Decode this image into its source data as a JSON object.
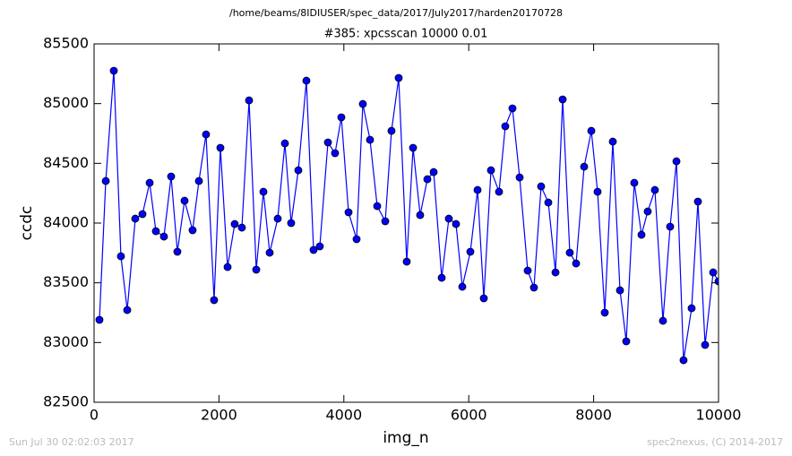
{
  "chart_data": {
    "type": "line",
    "suptitle": "/home/beams/8IDIUSER/spec_data/2017/July2017/harden20170728",
    "title": "#385: xpcsscan 10000 0.01",
    "x_label": "img_n",
    "y_label": "ccdc",
    "footer_left": "Sun Jul 30 02:02:03 2017",
    "footer_right": "spec2nexus, (C) 2014-2017",
    "color": "#0000ff",
    "marker": "circle",
    "x": [
      86,
      187,
      316,
      430,
      531,
      660,
      775,
      890,
      990,
      1119,
      1234,
      1334,
      1449,
      1578,
      1679,
      1793,
      1922,
      2023,
      2138,
      2252,
      2367,
      2482,
      2597,
      2712,
      2812,
      2941,
      3056,
      3156,
      3271,
      3400,
      3515,
      3615,
      3745,
      3859,
      3960,
      4075,
      4204,
      4304,
      4419,
      4534,
      4663,
      4763,
      4878,
      5007,
      5108,
      5222,
      5337,
      5438,
      5567,
      5681,
      5796,
      5897,
      6026,
      6141,
      6241,
      6356,
      6485,
      6585,
      6700,
      6815,
      6944,
      7044,
      7159,
      7274,
      7389,
      7504,
      7618,
      7719,
      7848,
      7963,
      8063,
      8178,
      8307,
      8422,
      8522,
      8651,
      8766,
      8866,
      8981,
      9110,
      9225,
      9326,
      9440,
      9569,
      9670,
      9785,
      9914,
      10000
    ],
    "values": [
      83190,
      84352,
      85275,
      83722,
      83272,
      84037,
      84075,
      84337,
      83932,
      83887,
      84390,
      83760,
      84187,
      83940,
      84352,
      84742,
      83355,
      84630,
      83632,
      83992,
      83962,
      85027,
      83610,
      84262,
      83752,
      84037,
      84667,
      84000,
      84442,
      85192,
      83775,
      83805,
      84675,
      84585,
      84885,
      84090,
      83865,
      84997,
      84697,
      84142,
      84015,
      84772,
      85215,
      83677,
      84630,
      84067,
      84367,
      84427,
      83542,
      84037,
      83992,
      83467,
      83760,
      84277,
      83370,
      84442,
      84262,
      84810,
      84960,
      84382,
      83602,
      83460,
      84307,
      84172,
      83587,
      85035,
      83752,
      83662,
      84472,
      84772,
      84262,
      83250,
      84682,
      83437,
      83010,
      84337,
      83902,
      84097,
      84277,
      83182,
      83970,
      84517,
      82852,
      83287,
      84180,
      82980,
      83587,
      83512
    ],
    "xlim": [
      0,
      10000
    ],
    "xticks": [
      0,
      2000,
      4000,
      6000,
      8000,
      10000
    ],
    "ylim": [
      82500,
      85500
    ],
    "yticks": [
      82500,
      83000,
      83500,
      84000,
      84500,
      85000,
      85500
    ]
  }
}
